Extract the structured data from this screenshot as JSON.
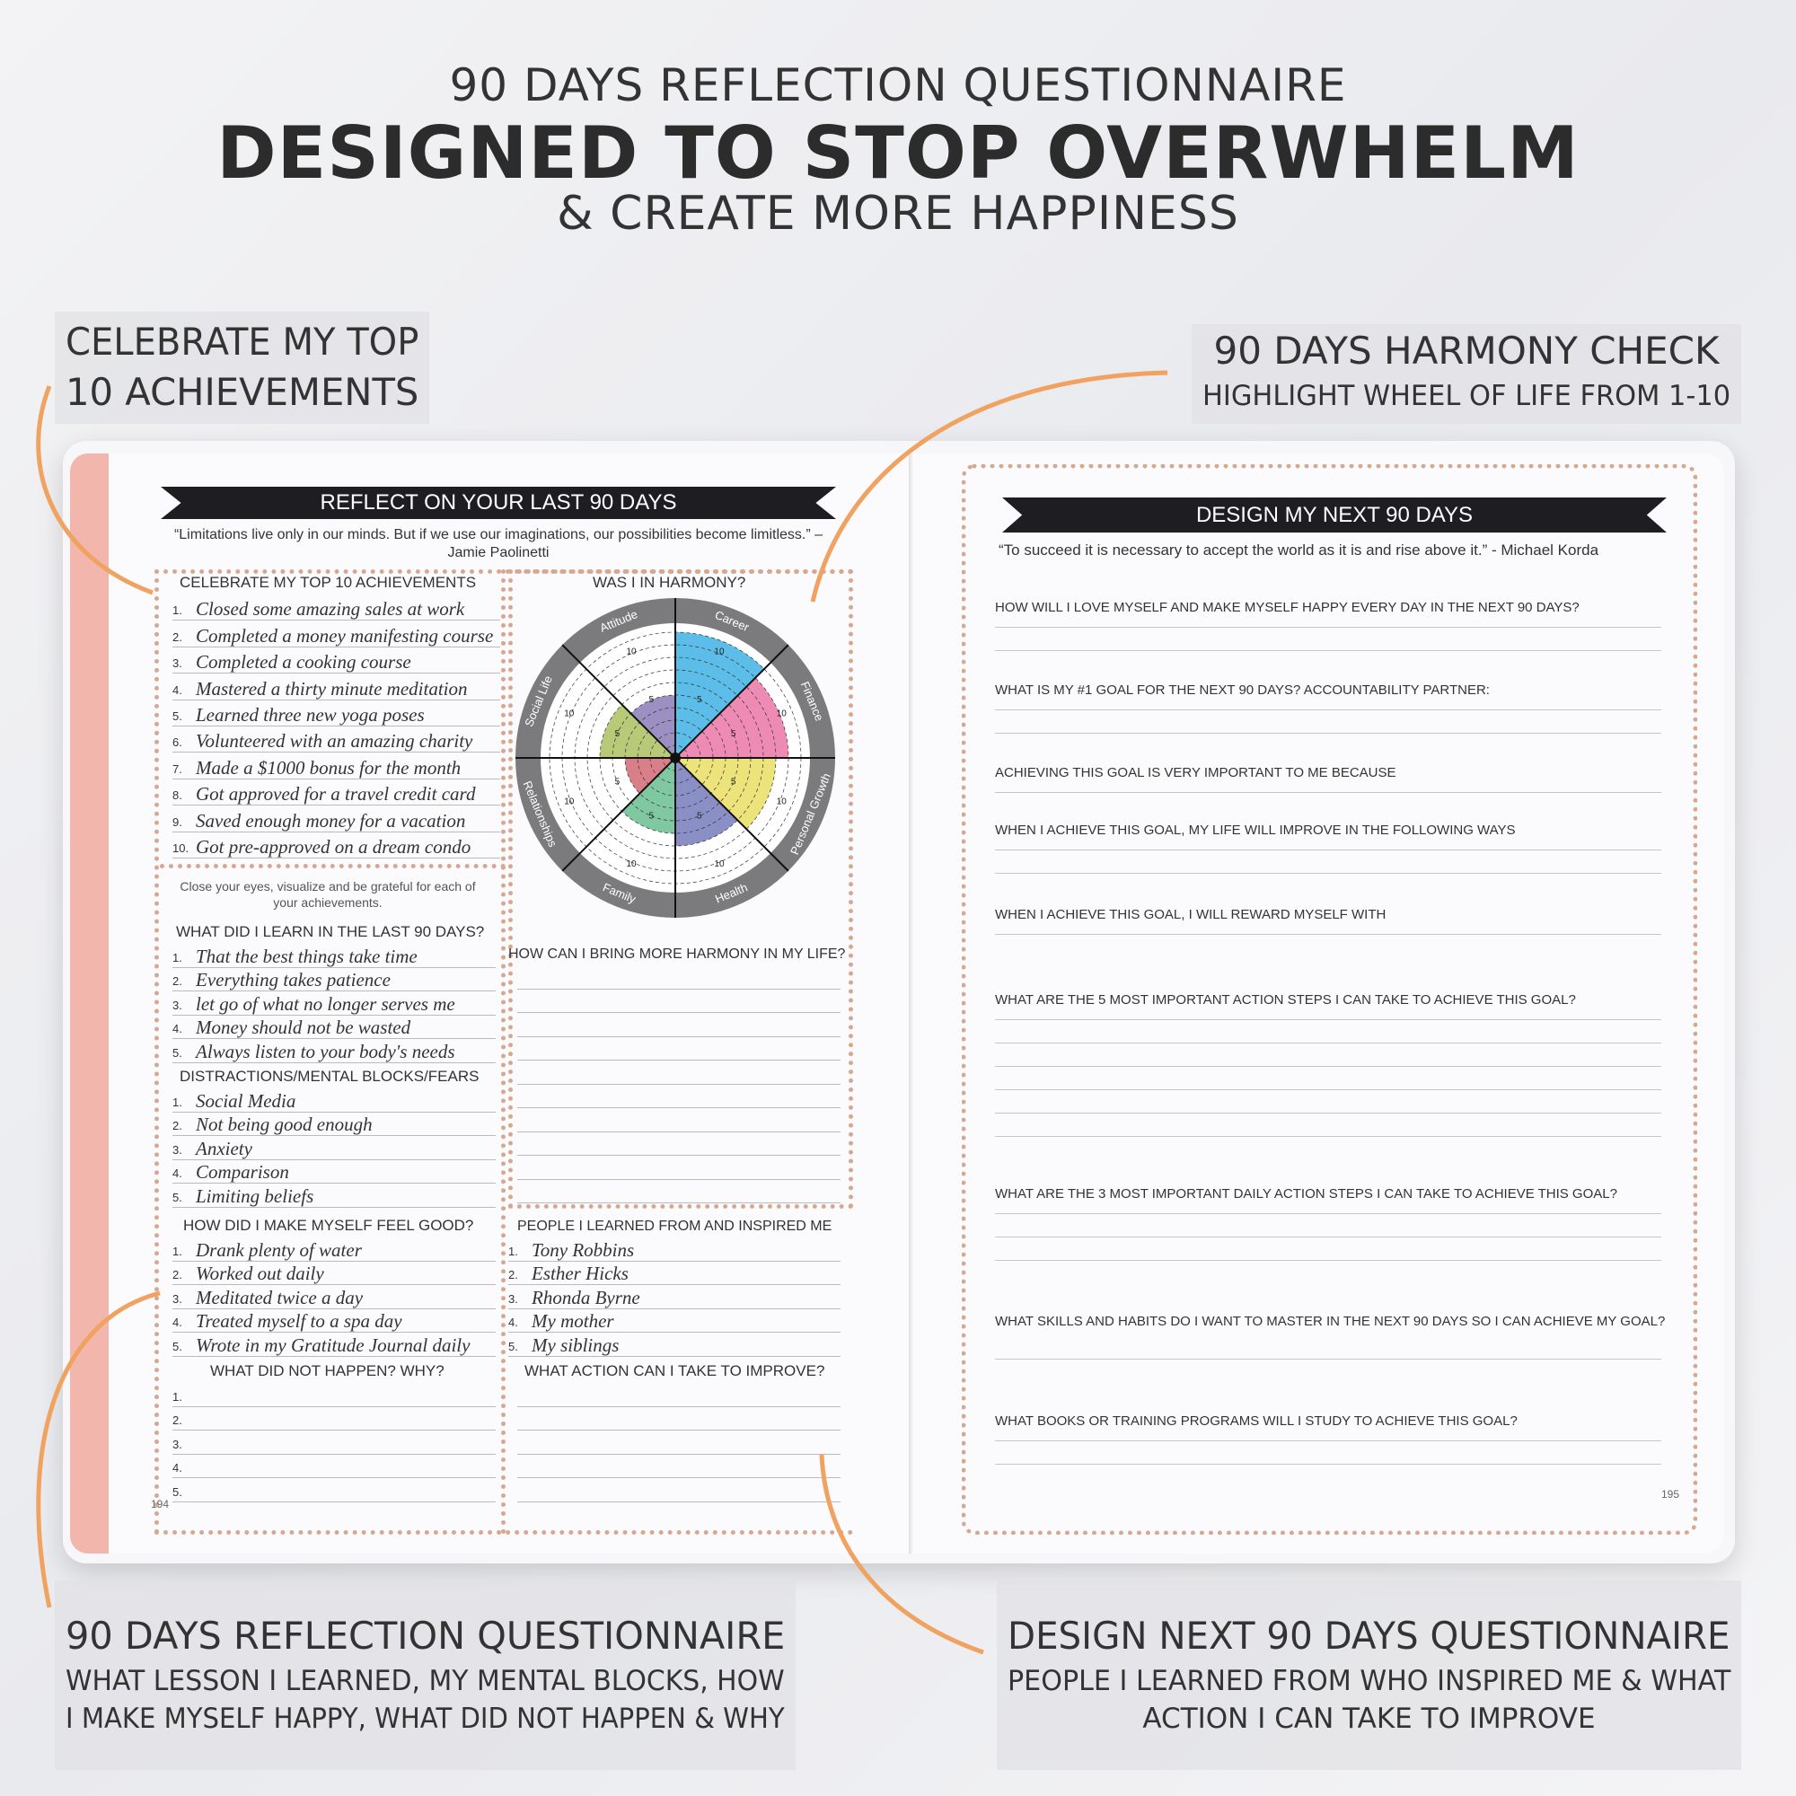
{
  "header": {
    "line1": "90 DAYS REFLECTION QUESTIONNAIRE",
    "line2": "DESIGNED TO STOP OVERWHELM",
    "line3": "& CREATE MORE HAPPINESS"
  },
  "callouts": {
    "top_left": {
      "line1": "CELEBRATE MY TOP",
      "line2": "10 ACHIEVEMENTS"
    },
    "top_right": {
      "line1": "90 DAYS HARMONY CHECK",
      "line2": "HIGHLIGHT WHEEL OF LIFE FROM 1-10"
    },
    "bottom_left": {
      "line1": "90 DAYS REFLECTION QUESTIONNAIRE",
      "line2": "WHAT LESSON I LEARNED, MY MENTAL BLOCKS, HOW",
      "line3": "I MAKE MYSELF HAPPY, WHAT DID NOT HAPPEN & WHY"
    },
    "bottom_right": {
      "line1": "DESIGN NEXT 90 DAYS QUESTIONNAIRE",
      "line2": "PEOPLE I LEARNED FROM WHO INSPIRED ME & WHAT",
      "line3": "ACTION I CAN TAKE TO IMPROVE"
    }
  },
  "left_page": {
    "banner": "REFLECT ON YOUR LAST 90 DAYS",
    "quote": "“Limitations live only in our minds.  But if we use our imaginations, our possibilities become limitless.” – Jamie Paolinetti",
    "achievements": {
      "title": "CELEBRATE MY TOP 10 ACHIEVEMENTS",
      "items": [
        "Closed some amazing sales at work",
        "Completed a money manifesting course",
        "Completed a cooking course",
        "Mastered a thirty minute meditation",
        "Learned three new yoga poses",
        "Volunteered with an amazing charity",
        "Made a $1000 bonus for the month",
        "Got approved for a travel credit card",
        "Saved enough money for a vacation",
        "Got pre-approved on a dream condo"
      ]
    },
    "gratitude_note": "Close your eyes, visualize and be grateful for each of your achievements.",
    "learned": {
      "title": "WHAT DID I LEARN IN THE LAST 90 DAYS?",
      "items": [
        "That the best things take time",
        "Everything takes patience",
        "let go of what no longer serves me",
        "Money should not be wasted",
        "Always listen to your body's needs"
      ]
    },
    "blocks": {
      "title": "DISTRACTIONS/MENTAL BLOCKS/FEARS",
      "items": [
        "Social Media",
        "Not being good enough",
        "Anxiety",
        "Comparison",
        "Limiting beliefs"
      ]
    },
    "feel_good": {
      "title": "HOW DID I MAKE MYSELF FEEL GOOD?",
      "items": [
        "Drank plenty of water",
        "Worked out daily",
        "Meditated twice a day",
        "Treated myself to a spa day",
        "Wrote in my Gratitude Journal daily"
      ]
    },
    "not_happen": {
      "title": "WHAT DID NOT HAPPEN?  WHY?",
      "items": [
        "",
        "",
        "",
        "",
        ""
      ]
    },
    "harmony": {
      "title": "WAS I IN HARMONY?",
      "segments": [
        {
          "label": "Career",
          "color": "#5bbde8",
          "value": 10
        },
        {
          "label": "Finance",
          "color": "#ee8bb4",
          "value": 9
        },
        {
          "label": "Personal Growth",
          "color": "#ece47a",
          "value": 8
        },
        {
          "label": "Health",
          "color": "#8a8fc6",
          "value": 7
        },
        {
          "label": "Family",
          "color": "#7fc8a2",
          "value": 6
        },
        {
          "label": "Relationships",
          "color": "#d97f8a",
          "value": 4
        },
        {
          "label": "Social Life",
          "color": "#b8c978",
          "value": 6
        },
        {
          "label": "Attitude",
          "color": "#9c8fc2",
          "value": 5
        }
      ],
      "tick_labels": [
        "5",
        "10"
      ]
    },
    "more_harmony": "HOW CAN I BRING MORE HARMONY IN MY LIFE?",
    "people": {
      "title": "PEOPLE I LEARNED FROM AND INSPIRED ME",
      "items": [
        "Tony Robbins",
        "Esther Hicks",
        "Rhonda Byrne",
        "My mother",
        "My siblings"
      ]
    },
    "improve": "WHAT ACTION CAN I TAKE TO IMPROVE?",
    "page_number": "194"
  },
  "right_page": {
    "banner": "DESIGN MY NEXT 90 DAYS",
    "quote": "“To succeed it is necessary to accept the world as it is and rise above it.” - Michael Korda",
    "questions": [
      {
        "text": "HOW WILL I LOVE MYSELF AND MAKE MYSELF HAPPY EVERY DAY IN THE NEXT 90 DAYS?",
        "lines": 2
      },
      {
        "text": "WHAT IS MY #1 GOAL FOR THE NEXT 90 DAYS?      ACCOUNTABILITY PARTNER:",
        "lines": 2
      },
      {
        "text": "ACHIEVING THIS GOAL IS VERY IMPORTANT TO ME BECAUSE",
        "lines": 1
      },
      {
        "text": "WHEN I ACHIEVE THIS GOAL, MY LIFE WILL IMPROVE IN THE FOLLOWING WAYS",
        "lines": 2
      },
      {
        "text": "WHEN I ACHIEVE THIS GOAL, I WILL REWARD MYSELF WITH",
        "lines": 1
      },
      {
        "text": "WHAT ARE THE 5 MOST IMPORTANT ACTION STEPS I CAN TAKE TO ACHIEVE THIS GOAL?",
        "lines": 6
      },
      {
        "text": "WHAT ARE THE 3 MOST IMPORTANT DAILY ACTION STEPS I CAN TAKE TO ACHIEVE THIS GOAL?",
        "lines": 3
      },
      {
        "text": "WHAT SKILLS AND HABITS DO I WANT TO MASTER IN THE NEXT 90 DAYS SO I CAN ACHIEVE MY GOAL?",
        "lines": 1
      },
      {
        "text": "WHAT BOOKS OR TRAINING PROGRAMS WILL I STUDY TO ACHIEVE THIS GOAL?",
        "lines": 2
      }
    ],
    "page_number": "195"
  },
  "colors": {
    "accent_arrow": "#f0a261",
    "dotted_border": "#d7a890",
    "banner": "#1e1e22"
  }
}
